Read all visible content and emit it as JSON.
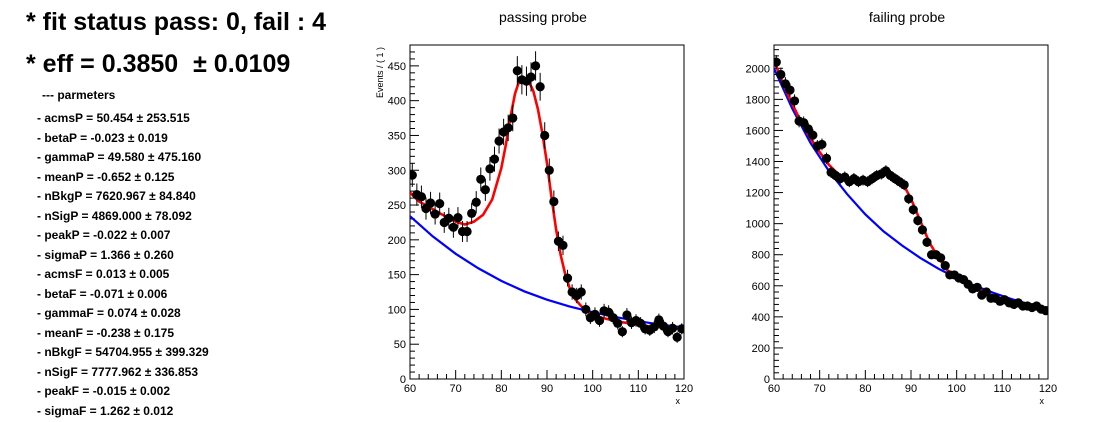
{
  "summary": {
    "fit_status_label": "* fit status pass: 0, fail : 4",
    "eff_label": "* eff = 0.3850",
    "eff_error": "± 0.0109",
    "params_header": "--- parmeters",
    "params": [
      "- acmsP = 50.454 ± 253.515",
      "- betaP = -0.023 ± 0.019",
      "- gammaP = 49.580 ± 475.160",
      "- meanP = -0.652 ± 0.125",
      "- nBkgP = 7620.967 ± 84.840",
      "- nSigP = 4869.000 ± 78.092",
      "- peakP = -0.022 ± 0.007",
      "- sigmaP = 1.366 ± 0.260",
      "- acmsF = 0.013 ± 0.005",
      "- betaF = -0.071 ± 0.006",
      "- gammaF = 0.074 ± 0.028",
      "- meanF = -0.238 ± 0.175",
      "- nBkgF = 54704.955 ± 399.329",
      "- nSigF = 7777.962 ± 336.853",
      "- peakF = -0.015 ± 0.002",
      "- sigmaF = 1.262 ± 0.012"
    ]
  },
  "colors": {
    "data": "#000000",
    "fit": "#ff0000",
    "background": "#0000ff"
  },
  "chart_data": [
    {
      "type": "scatter",
      "title": "passing probe",
      "xlabel": "x",
      "ylabel": "Events / ( 1 )",
      "xlim": [
        60,
        120
      ],
      "ylim": [
        0,
        480
      ],
      "xticks": [
        60,
        70,
        80,
        90,
        100,
        110,
        120
      ],
      "yticks": [
        0,
        50,
        100,
        150,
        200,
        250,
        300,
        350,
        400,
        450
      ],
      "grid": false,
      "series": [
        {
          "role": "data",
          "x": [
            60.5,
            61.5,
            62.5,
            63.5,
            64.5,
            65.5,
            66.5,
            67.5,
            68.5,
            69.5,
            70.5,
            71.5,
            72.5,
            73.5,
            74.5,
            75.5,
            76.5,
            77.5,
            78.5,
            79.5,
            80.5,
            81.5,
            82.5,
            83.5,
            84.5,
            85.5,
            86.5,
            87.5,
            88.5,
            89.5,
            90.5,
            91.5,
            92.5,
            93.5,
            94.5,
            95.5,
            96.5,
            97.5,
            98.5,
            99.5,
            100.5,
            101.5,
            102.5,
            103.5,
            104.5,
            105.5,
            106.5,
            107.5,
            108.5,
            109.5,
            110.5,
            111.5,
            112.5,
            113.5,
            114.5,
            115.5,
            116.5,
            117.5,
            118.5,
            119.5
          ],
          "y": [
            293,
            265,
            262,
            245,
            253,
            237,
            252,
            225,
            231,
            218,
            232,
            212,
            212,
            238,
            254,
            287,
            272,
            302,
            316,
            342,
            355,
            361,
            375,
            443,
            430,
            428,
            434,
            450,
            420,
            350,
            300,
            255,
            198,
            192,
            145,
            125,
            120,
            125,
            100,
            88,
            93,
            84,
            98,
            96,
            88,
            80,
            68,
            92,
            81,
            84,
            80,
            72,
            70,
            75,
            85,
            76,
            68,
            73,
            60,
            72
          ],
          "err": [
            17,
            16,
            16,
            16,
            16,
            15,
            16,
            15,
            15,
            15,
            15,
            15,
            15,
            15,
            16,
            17,
            16,
            17,
            18,
            18,
            19,
            19,
            19,
            21,
            21,
            21,
            21,
            21,
            20,
            19,
            17,
            16,
            14,
            14,
            12,
            11,
            11,
            11,
            10,
            9,
            10,
            9,
            10,
            10,
            9,
            9,
            8,
            10,
            9,
            9,
            9,
            8,
            8,
            9,
            9,
            9,
            8,
            9,
            8,
            8
          ]
        },
        {
          "role": "fit",
          "x": [
            60,
            62,
            64,
            66,
            68,
            70,
            72,
            74,
            76,
            78,
            80,
            81,
            82,
            83,
            84,
            85,
            86,
            87,
            88,
            89,
            90,
            91,
            92,
            93,
            94,
            95,
            96,
            98,
            100,
            102,
            104,
            106,
            108,
            110,
            112,
            114,
            116,
            118,
            120
          ],
          "y": [
            268,
            255,
            248,
            240,
            233,
            226,
            222,
            226,
            236,
            258,
            303,
            337,
            377,
            410,
            430,
            433,
            428,
            414,
            388,
            353,
            310,
            260,
            215,
            178,
            150,
            130,
            116,
            101,
            92,
            88,
            85,
            82,
            80,
            78,
            76,
            75,
            74,
            73,
            72
          ]
        },
        {
          "role": "background",
          "x": [
            60,
            65,
            70,
            75,
            80,
            85,
            90,
            95,
            100,
            105,
            110,
            115,
            120
          ],
          "y": [
            234,
            205,
            180,
            159,
            141,
            126,
            114,
            104,
            96,
            89,
            83,
            78,
            74
          ]
        }
      ]
    },
    {
      "type": "scatter",
      "title": "failing probe",
      "xlabel": "x",
      "ylabel": "",
      "xlim": [
        60,
        120
      ],
      "ylim": [
        0,
        2150
      ],
      "xticks": [
        60,
        70,
        80,
        90,
        100,
        110,
        120
      ],
      "yticks": [
        0,
        200,
        400,
        600,
        800,
        1000,
        1200,
        1400,
        1600,
        1800,
        2000
      ],
      "grid": false,
      "series": [
        {
          "role": "data",
          "x": [
            60.5,
            61.5,
            62.5,
            63.5,
            64.5,
            65.5,
            66.5,
            67.5,
            68.5,
            69.5,
            70.5,
            71.5,
            72.5,
            73.5,
            74.5,
            75.5,
            76.5,
            77.5,
            78.5,
            79.5,
            80.5,
            81.5,
            82.5,
            83.5,
            84.5,
            85.5,
            86.5,
            87.5,
            88.5,
            89.5,
            90.5,
            91.5,
            92.5,
            93.5,
            94.5,
            95.5,
            96.5,
            97.5,
            98.5,
            99.5,
            100.5,
            101.5,
            102.5,
            103.5,
            104.5,
            105.5,
            106.5,
            107.5,
            108.5,
            109.5,
            110.5,
            111.5,
            112.5,
            113.5,
            114.5,
            115.5,
            116.5,
            117.5,
            118.5,
            119.5
          ],
          "y": [
            2040,
            1960,
            1900,
            1860,
            1790,
            1660,
            1650,
            1610,
            1570,
            1500,
            1510,
            1420,
            1330,
            1310,
            1290,
            1300,
            1270,
            1290,
            1270,
            1280,
            1270,
            1290,
            1310,
            1320,
            1340,
            1310,
            1290,
            1270,
            1250,
            1160,
            1090,
            1020,
            960,
            880,
            800,
            800,
            780,
            730,
            670,
            670,
            650,
            640,
            610,
            580,
            590,
            540,
            560,
            520,
            520,
            500,
            510,
            490,
            480,
            490,
            470,
            470,
            460,
            470,
            450,
            440
          ],
          "err": [
            45,
            44,
            43,
            43,
            42,
            40,
            40,
            40,
            39,
            38,
            38,
            37,
            36,
            36,
            36,
            36,
            35,
            36,
            35,
            35,
            35,
            36,
            36,
            36,
            36,
            36,
            35,
            35,
            35,
            34,
            33,
            32,
            31,
            30,
            28,
            28,
            28,
            27,
            26,
            26,
            25,
            25,
            25,
            24,
            24,
            23,
            23,
            23,
            23,
            22,
            22,
            22,
            22,
            22,
            21,
            21,
            21,
            21,
            21,
            21
          ]
        },
        {
          "role": "fit",
          "x": [
            60,
            62,
            64,
            66,
            68,
            70,
            72,
            74,
            76,
            78,
            80,
            82,
            84,
            86,
            88,
            90,
            92,
            94,
            96,
            98,
            100,
            104,
            108,
            112,
            116,
            120
          ],
          "y": [
            2050,
            1900,
            1770,
            1650,
            1550,
            1460,
            1380,
            1320,
            1285,
            1275,
            1280,
            1300,
            1320,
            1315,
            1270,
            1160,
            1020,
            880,
            780,
            700,
            650,
            590,
            530,
            490,
            465,
            440
          ]
        },
        {
          "role": "background",
          "x": [
            60,
            64,
            68,
            72,
            76,
            80,
            84,
            88,
            92,
            96,
            100,
            104,
            108,
            112,
            116,
            120
          ],
          "y": [
            2000,
            1740,
            1520,
            1340,
            1190,
            1060,
            950,
            860,
            780,
            710,
            650,
            600,
            555,
            515,
            480,
            450
          ]
        }
      ]
    }
  ]
}
